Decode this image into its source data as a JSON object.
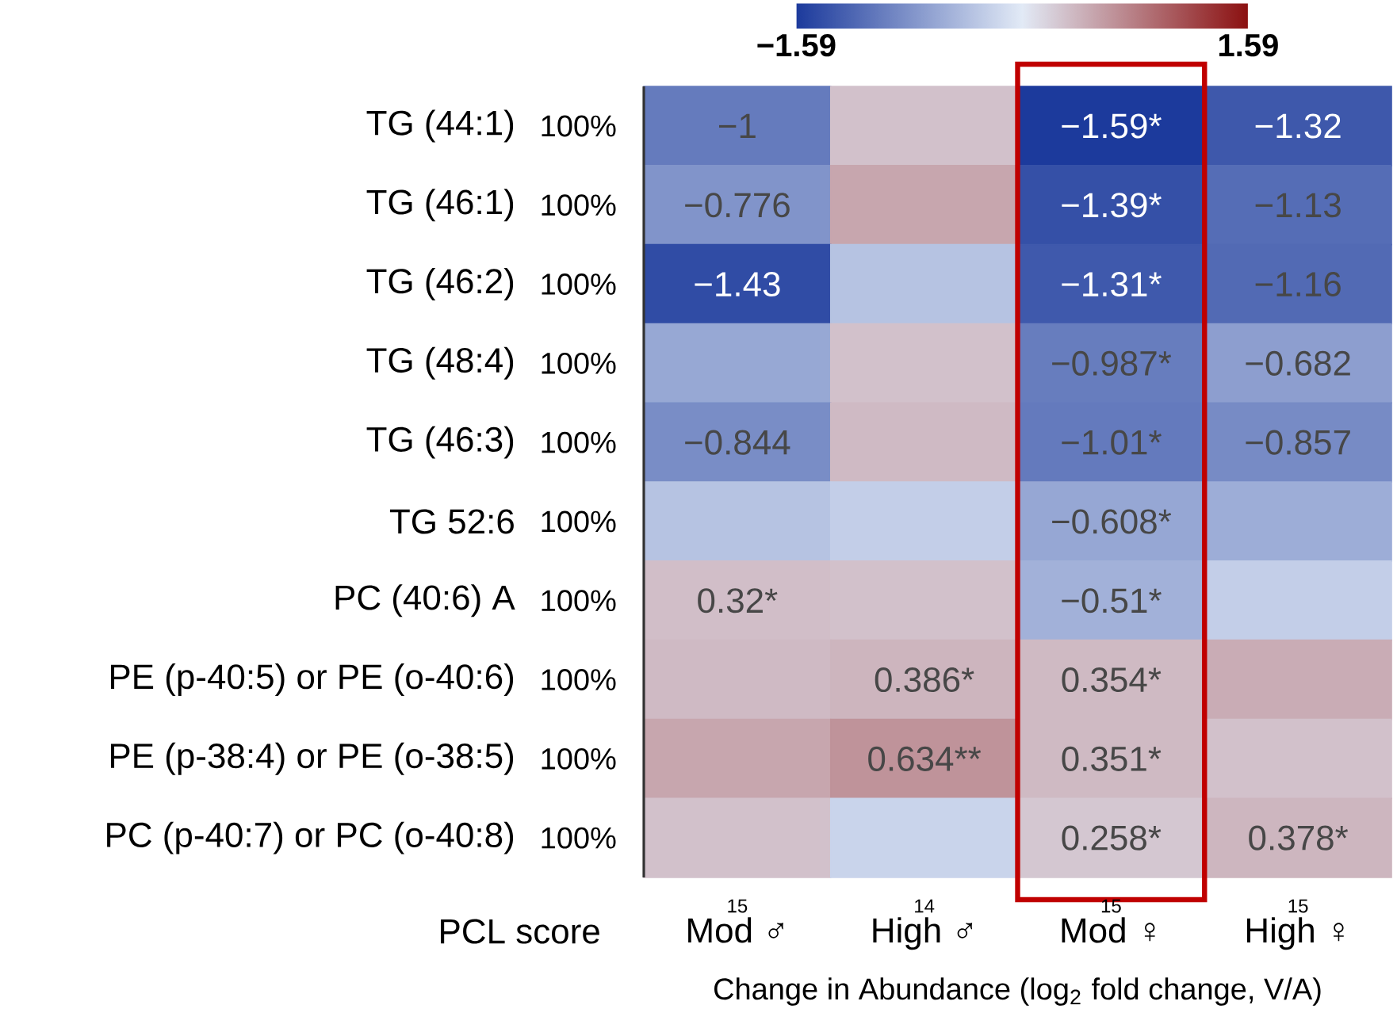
{
  "chart_data": {
    "type": "heatmap",
    "xlabel": "Change in Abundance (log$_{2}$ fold change, V/A)",
    "categories": [
      "Mod ♂",
      "High ♂",
      "Mod ♀",
      "High ♀"
    ],
    "y_categories": [
      "TG (44:1)",
      "TG (46:1)",
      "TG (46:2)",
      "TG (48:4)",
      "TG (46:3)",
      "TG 52:6",
      "PC (40:6) A",
      "PE (p-40:5) or PE (o-40:6)",
      "PE (p-38:4) or PE (o-38:5)",
      "PC (p-40:7) or PC (o-40:8)"
    ],
    "y2_categories": [
      "100%",
      "100%",
      "100%",
      "100%",
      "100%",
      "100%",
      "100%",
      "100%",
      "100%",
      "100%"
    ],
    "cells": [
      [
        -1,
        0.3,
        -1.59,
        -1.32
      ],
      [
        -0.776,
        0.5,
        -1.39,
        -1.13
      ],
      [
        -1.43,
        -0.35,
        -1.31,
        -1.16
      ],
      [
        -0.6,
        0.3,
        -0.987,
        -0.682
      ],
      [
        -0.844,
        0.35,
        -1.01,
        -0.857
      ],
      [
        -0.35,
        -0.25,
        -0.608,
        -0.55
      ],
      [
        0.32,
        0.3,
        -0.51,
        -0.25
      ],
      [
        0.35,
        0.386,
        0.354,
        0.45
      ],
      [
        0.5,
        0.634,
        0.351,
        0.3
      ],
      [
        0.3,
        -0.2,
        0.258,
        0.378
      ]
    ],
    "cell_labels": [
      [
        "−1",
        null,
        "−1.59*",
        "−1.32"
      ],
      [
        "−0.776",
        null,
        "−1.39*",
        "−1.13"
      ],
      [
        "−1.43",
        null,
        "−1.31*",
        "−1.16"
      ],
      [
        null,
        null,
        "−0.987*",
        "−0.682"
      ],
      [
        "−0.844",
        null,
        "−1.01*",
        "−0.857"
      ],
      [
        null,
        null,
        "−0.608*",
        null
      ],
      [
        "0.32*",
        null,
        "−0.51*",
        null
      ],
      [
        null,
        "0.386*",
        "0.354*",
        null
      ],
      [
        null,
        "0.634**",
        "0.351*",
        null
      ],
      [
        null,
        null,
        "0.258*",
        "0.378*"
      ]
    ],
    "clim": [
      -1.59,
      1.59
    ],
    "cticks": [
      {
        "value": -1.59,
        "label": "−1.59"
      },
      {
        "value": 1.59,
        "label": "1.59"
      }
    ],
    "annotations": [
      "PCL score",
      "15",
      "14",
      "15",
      "15"
    ]
  }
}
